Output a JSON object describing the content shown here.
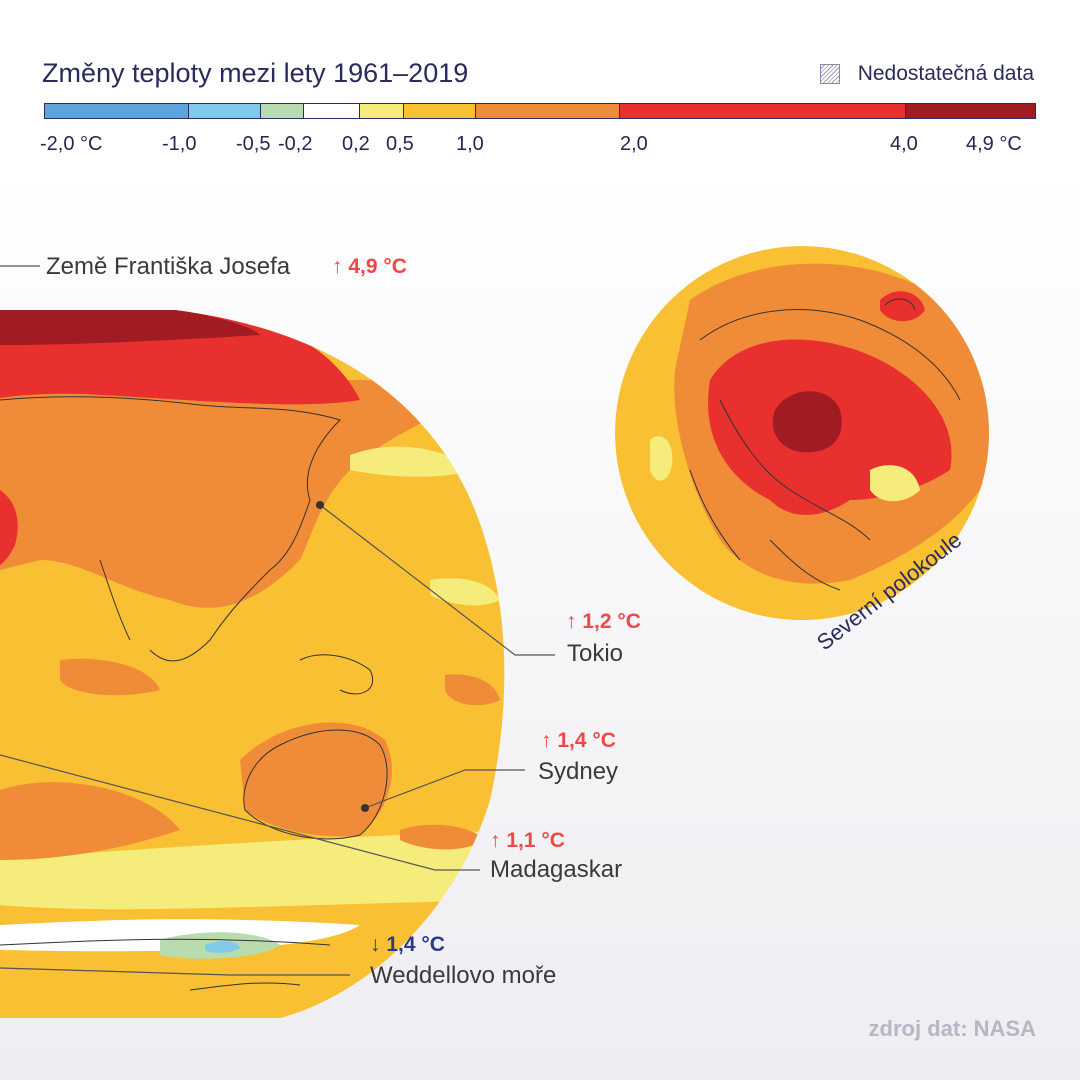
{
  "title": "Změny teploty mezi lety 1961–2019",
  "no_data_label": "Nedostatečná data",
  "legend": {
    "segments": [
      {
        "from": -2.0,
        "to": -1.0,
        "color": "#5ea4dc"
      },
      {
        "from": -1.0,
        "to": -0.5,
        "color": "#7ecae8"
      },
      {
        "from": -0.5,
        "to": -0.2,
        "color": "#b8dbb0"
      },
      {
        "from": -0.2,
        "to": 0.2,
        "color": "#ffffff"
      },
      {
        "from": 0.2,
        "to": 0.5,
        "color": "#f6ec7c"
      },
      {
        "from": 0.5,
        "to": 1.0,
        "color": "#f8c032"
      },
      {
        "from": 1.0,
        "to": 2.0,
        "color": "#f08c38"
      },
      {
        "from": 2.0,
        "to": 4.0,
        "color": "#e8302e"
      },
      {
        "from": 4.0,
        "to": 4.9,
        "color": "#a01c22"
      }
    ],
    "tick_labels": [
      "-2,0 °C",
      "-1,0",
      "-0,5",
      "-0,2",
      "0,2",
      "0,5",
      "1,0",
      "2,0",
      "4,0",
      "4,9 °C"
    ],
    "tick_values": [
      -2.0,
      -1.0,
      -0.5,
      -0.2,
      0.2,
      0.5,
      1.0,
      2.0,
      4.0,
      4.9
    ]
  },
  "callouts": {
    "franz_josef": {
      "label": "Země Františka Josefa",
      "value": "↑ 4,9 °C"
    },
    "tokyo": {
      "label": "Tokio",
      "value": "↑ 1,2 °C"
    },
    "sydney": {
      "label": "Sydney",
      "value": "↑ 1,4 °C"
    },
    "madagascar": {
      "label": "Madagaskar",
      "value": "↑ 1,1 °C"
    },
    "weddell": {
      "label": "Weddellovo moře",
      "value": "↓ 1,4 °C"
    }
  },
  "hemisphere_label": "Severní polokoule",
  "source": "zdroj dat: NASA",
  "colors": {
    "hot_dark": "#a01c22",
    "red": "#e8302e",
    "orange": "#f08c38",
    "amber": "#f8c032",
    "yellow": "#f6ec7c",
    "green": "#b8dbb0",
    "blue": "#7ecae8",
    "up_text": "#f04848",
    "down_text": "#2a3a8c"
  }
}
